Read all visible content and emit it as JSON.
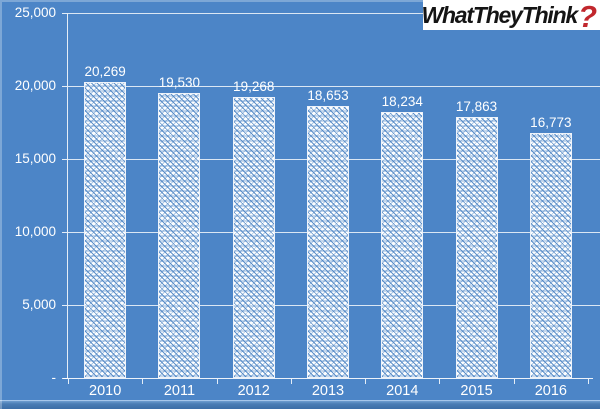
{
  "logo": {
    "brand": "WhatTheyThink",
    "mark": "?"
  },
  "colors": {
    "background": "#4c85c7",
    "gridline": "#ffffff",
    "bar_fill": "#ffffff",
    "bar_pattern_tint": "#4680c2",
    "text": "#ffffff",
    "logo_background": "#ffffff",
    "logo_text": "#141414",
    "logo_question_mark": "#c1272d",
    "bottom_edge": "#3c6da6"
  },
  "chart_data": {
    "type": "bar",
    "title": "",
    "xlabel": "",
    "ylabel": "",
    "categories": [
      "2010",
      "2011",
      "2012",
      "2013",
      "2014",
      "2015",
      "2016"
    ],
    "values": [
      20269,
      19530,
      19268,
      18653,
      18234,
      17863,
      16773
    ],
    "value_labels": [
      "20,269",
      "19,530",
      "19,268",
      "18,653",
      "18,234",
      "17,863",
      "16,773"
    ],
    "ylim": [
      0,
      25000
    ],
    "yticks": {
      "values": [
        25000,
        20000,
        15000,
        10000,
        5000,
        0
      ],
      "labels": [
        "25,000",
        "20,000",
        "15,000",
        "10,000",
        "5,000",
        "-"
      ]
    },
    "grid": true,
    "legend": "none"
  }
}
